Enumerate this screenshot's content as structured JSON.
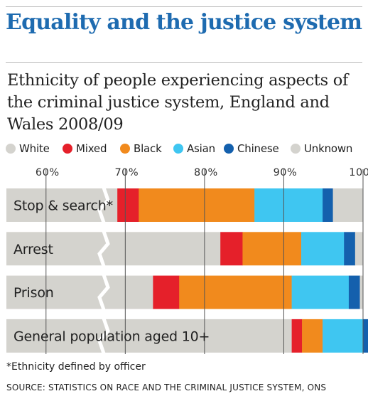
{
  "headline": "Equality and the justice system",
  "chart_data": {
    "type": "bar",
    "orientation": "horizontal",
    "stacked": true,
    "title": "Ethnicity of people experiencing aspects of the criminal justice system, England and Wales 2008/09",
    "xlim": [
      55,
      100
    ],
    "axis_break": true,
    "x_ticks": [
      "60%",
      "70%",
      "80%",
      "90%",
      "100%"
    ],
    "x_tick_values": [
      60,
      70,
      80,
      90,
      100
    ],
    "legend_position": "top",
    "categories": [
      "Stop & search*",
      "Arrest",
      "Prison",
      "General population aged 10+"
    ],
    "series": [
      {
        "name": "White",
        "color": "#d4d3ce",
        "values": [
          69.0,
          82.0,
          73.5,
          91.0
        ]
      },
      {
        "name": "Mixed",
        "color": "#e5202a",
        "values": [
          2.7,
          2.8,
          3.3,
          1.3
        ]
      },
      {
        "name": "Black",
        "color": "#f18a1d",
        "values": [
          14.6,
          7.4,
          14.2,
          2.6
        ]
      },
      {
        "name": "Asian",
        "color": "#3fc6f1",
        "values": [
          8.6,
          5.4,
          7.2,
          5.1
        ]
      },
      {
        "name": "Chinese",
        "color": "#1460ad",
        "values": [
          1.3,
          1.4,
          1.4,
          1.4
        ]
      },
      {
        "name": "Unknown",
        "color": "#d4d3ce",
        "values": [
          3.8,
          1.0,
          0.4,
          0.0
        ]
      }
    ]
  },
  "legend_dot_colors": [
    "#d4d3ce",
    "#e5202a",
    "#f18a1d",
    "#3fc6f1",
    "#1460ad",
    "#d4d3ce"
  ],
  "footnote": "*Ethnicity defined by officer",
  "source": "SOURCE: STATISTICS ON RACE AND THE CRIMINAL JUSTICE SYSTEM, ONS"
}
